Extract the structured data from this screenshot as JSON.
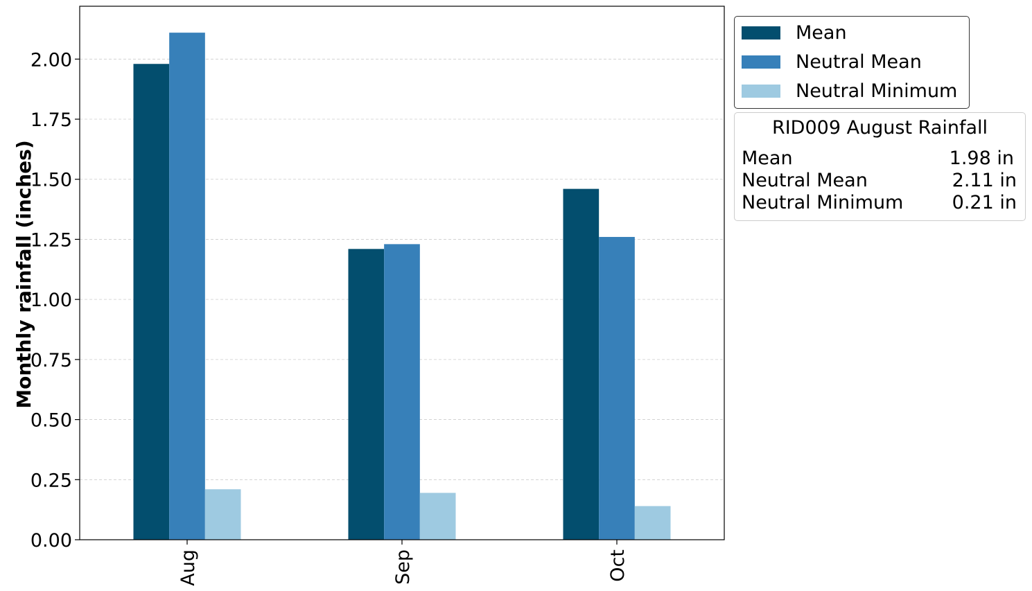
{
  "chart_data": {
    "type": "bar",
    "categories": [
      "Aug",
      "Sep",
      "Oct"
    ],
    "series": [
      {
        "name": "Mean",
        "values": [
          1.98,
          1.21,
          1.46
        ],
        "color": "#034e6e"
      },
      {
        "name": "Neutral Mean",
        "values": [
          2.11,
          1.23,
          1.26
        ],
        "color": "#3780b9"
      },
      {
        "name": "Neutral Minimum",
        "values": [
          0.21,
          0.195,
          0.14
        ],
        "color": "#9ecae1"
      }
    ],
    "title": "",
    "xlabel": "",
    "ylabel": "Monthly rainfall (inches)",
    "ylim": [
      0,
      2.22
    ],
    "yticks": [
      "0.00",
      "0.25",
      "0.50",
      "0.75",
      "1.00",
      "1.25",
      "1.50",
      "1.75",
      "2.00"
    ],
    "grid": true,
    "legend_position": "outside-top-right"
  },
  "info_box": {
    "title": "RID009 August Rainfall",
    "rows": [
      {
        "label": "Mean",
        "value": "1.98 in"
      },
      {
        "label": "Neutral Mean",
        "value": "2.11 in"
      },
      {
        "label": "Neutral Minimum",
        "value": "0.21 in"
      }
    ]
  }
}
